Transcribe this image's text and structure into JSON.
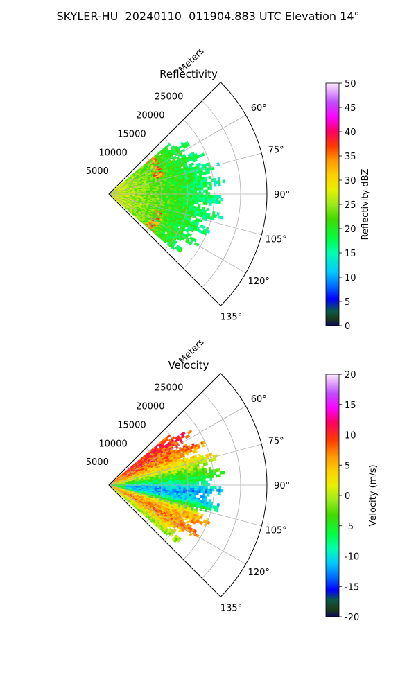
{
  "figure": {
    "title": "SKYLER-HU  20240110  011904.883 UTC Elevation 14°"
  },
  "chart_data": [
    {
      "type": "heatmap",
      "subtype": "polar-ppi-sector",
      "title": "Reflectivity",
      "radial_axis_label": "Meters",
      "radial_ticks": [
        "5000",
        "10000",
        "15000",
        "20000",
        "25000"
      ],
      "radial_tick_values": [
        5000,
        10000,
        15000,
        20000,
        25000
      ],
      "rlim": [
        0,
        30000
      ],
      "angular_ticks": [
        "60°",
        "75°",
        "90°",
        "105°",
        "120°",
        "135°"
      ],
      "angular_tick_values": [
        60,
        75,
        90,
        105,
        120,
        135
      ],
      "theta_range_deg": [
        45,
        135
      ],
      "grid": true,
      "colorbar": {
        "label": "Reflectivity dBZ",
        "range": [
          0,
          50
        ],
        "ticks": [
          "0",
          "5",
          "10",
          "15",
          "20",
          "25",
          "30",
          "35",
          "40",
          "45",
          "50"
        ],
        "tick_values": [
          0,
          5,
          10,
          15,
          20,
          25,
          30,
          35,
          40,
          45,
          50
        ]
      },
      "data_extent": {
        "theta_range_deg": [
          50,
          131
        ],
        "max_range_m": 22000,
        "typical_value_dBZ": [
          15,
          28
        ],
        "max_value_dBZ": 38
      },
      "features": [
        {
          "description": "band of higher reflectivity",
          "range_m": [
            9000,
            11000
          ],
          "value_dBZ": [
            30,
            38
          ]
        }
      ]
    },
    {
      "type": "heatmap",
      "subtype": "polar-ppi-sector",
      "title": "Velocity",
      "radial_axis_label": "Meters",
      "radial_ticks": [
        "5000",
        "10000",
        "15000",
        "20000",
        "25000"
      ],
      "radial_tick_values": [
        5000,
        10000,
        15000,
        20000,
        25000
      ],
      "rlim": [
        0,
        30000
      ],
      "angular_ticks": [
        "60°",
        "75°",
        "90°",
        "105°",
        "120°",
        "135°"
      ],
      "angular_tick_values": [
        60,
        75,
        90,
        105,
        120,
        135
      ],
      "theta_range_deg": [
        45,
        135
      ],
      "grid": true,
      "colorbar": {
        "label": "Velocity (m/s)",
        "range": [
          -20,
          20
        ],
        "ticks": [
          "-20",
          "-15",
          "-10",
          "-5",
          "0",
          "5",
          "10",
          "15",
          "20"
        ],
        "tick_values": [
          -20,
          -15,
          -10,
          -5,
          0,
          5,
          10,
          15,
          20
        ]
      },
      "data_extent": {
        "theta_range_deg": [
          50,
          131
        ],
        "max_range_m": 22000
      },
      "features": [
        {
          "theta_deg": 55,
          "value_ms": 10
        },
        {
          "theta_deg": 65,
          "value_ms": 8
        },
        {
          "theta_deg": 75,
          "value_ms": 2
        },
        {
          "theta_deg": 85,
          "value_ms": -5
        },
        {
          "theta_deg": 93,
          "value_ms": -12
        },
        {
          "theta_deg": 100,
          "value_ms": -10
        },
        {
          "theta_deg": 108,
          "value_ms": 5
        },
        {
          "theta_deg": 118,
          "value_ms": 8
        },
        {
          "theta_deg": 128,
          "value_ms": 0
        }
      ]
    }
  ]
}
